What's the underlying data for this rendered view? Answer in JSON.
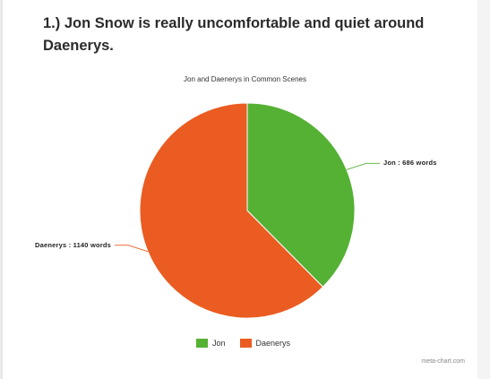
{
  "heading": {
    "line1": "1.) Jon Snow is really uncomfortable and quiet around",
    "line2": "Daenerys."
  },
  "chart_data": {
    "type": "pie",
    "title": "Jon and Daenerys in Common Scenes",
    "slices": [
      {
        "name": "Jon",
        "value": 686,
        "label": "Jon : 686 words",
        "color": "#55b134"
      },
      {
        "name": "Daenerys",
        "value": 1140,
        "label": "Daenerys : 1140 words",
        "color": "#ea5c21"
      }
    ],
    "legend": {
      "position": "bottom",
      "entries": [
        "Jon",
        "Daenerys"
      ]
    }
  },
  "watermark": "meta-chart.com"
}
